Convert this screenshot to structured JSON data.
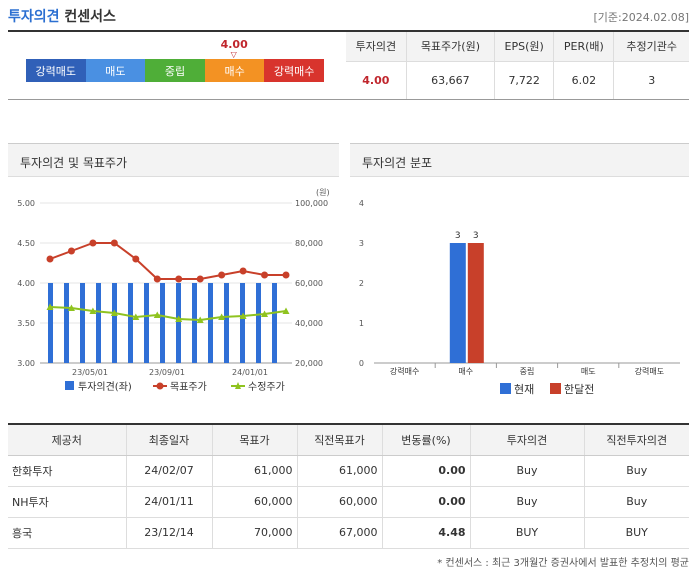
{
  "header": {
    "title_blue": "투자의견",
    "title_dark": "컨센서스",
    "base_date": "[기준:2024.02.08]"
  },
  "gauge": {
    "value": "4.00",
    "labels": [
      "강력매도",
      "매도",
      "중립",
      "매수",
      "강력매수"
    ],
    "colors": [
      "#3060b8",
      "#4a90e2",
      "#4fae38",
      "#f39223",
      "#d8342d"
    ],
    "selected_index": 3
  },
  "consensus_table": {
    "headers": [
      "투자의견",
      "목표주가(원)",
      "EPS(원)",
      "PER(배)",
      "추정기관수"
    ],
    "values": [
      "4.00",
      "63,667",
      "7,722",
      "6.02",
      "3"
    ]
  },
  "left_panel_title": "투자의견 및 목표주가",
  "right_panel_title": "투자의견 분포",
  "chart_data": [
    {
      "type": "bar+line",
      "left_axis": {
        "ticks": [
          "3.00",
          "3.50",
          "4.00",
          "4.50",
          "5.00"
        ],
        "ylim": [
          3,
          5
        ]
      },
      "right_axis": {
        "ticks": [
          "20,000",
          "40,000",
          "60,000",
          "80,000",
          "100,000"
        ],
        "ylim": [
          20000,
          100000
        ],
        "unit": "(원)"
      },
      "x_ticks": [
        "23/05/01",
        "23/09/01",
        "24/01/01"
      ],
      "series": [
        {
          "name": "투자의견(좌)",
          "kind": "bar",
          "color": "#2f6fd6",
          "values": [
            4,
            4,
            4,
            4,
            4,
            4,
            4,
            4,
            4,
            4,
            4,
            4,
            4,
            4,
            4
          ]
        },
        {
          "name": "목표주가",
          "kind": "line",
          "color": "#c8402a",
          "points": [
            [
              0,
              72000
            ],
            [
              1,
              76000
            ],
            [
              2,
              80000
            ],
            [
              3,
              80000
            ],
            [
              4,
              72000
            ],
            [
              5,
              62000
            ],
            [
              6,
              62000
            ],
            [
              7,
              62000
            ],
            [
              8,
              64000
            ],
            [
              9,
              66000
            ],
            [
              10,
              64000
            ],
            [
              11,
              64000
            ]
          ]
        },
        {
          "name": "수정주가",
          "kind": "line",
          "color": "#8fc31f",
          "points": [
            [
              0,
              48000
            ],
            [
              1,
              47500
            ],
            [
              2,
              46000
            ],
            [
              3,
              45000
            ],
            [
              4,
              43000
            ],
            [
              5,
              44000
            ],
            [
              6,
              42000
            ],
            [
              7,
              41500
            ],
            [
              8,
              43000
            ],
            [
              9,
              43500
            ],
            [
              10,
              44500
            ],
            [
              11,
              46000
            ]
          ]
        }
      ]
    },
    {
      "type": "bar",
      "categories": [
        "강력매수",
        "매수",
        "중립",
        "매도",
        "강력매도"
      ],
      "series": [
        {
          "name": "현재",
          "color": "#2f6fd6",
          "values": [
            0,
            3,
            0,
            0,
            0
          ]
        },
        {
          "name": "한달전",
          "color": "#c8402a",
          "values": [
            0,
            3,
            0,
            0,
            0
          ]
        }
      ],
      "y_ticks": [
        "0",
        "1",
        "2",
        "3",
        "4"
      ],
      "ylim": [
        0,
        4
      ]
    }
  ],
  "broker_table": {
    "headers": [
      "제공처",
      "최종일자",
      "목표가",
      "직전목표가",
      "변동률(%)",
      "투자의견",
      "직전투자의견"
    ],
    "rows": [
      [
        "한화투자",
        "24/02/07",
        "61,000",
        "61,000",
        "0.00",
        "Buy",
        "Buy"
      ],
      [
        "NH투자",
        "24/01/11",
        "60,000",
        "60,000",
        "0.00",
        "Buy",
        "Buy"
      ],
      [
        "흥국",
        "23/12/14",
        "70,000",
        "67,000",
        "4.48",
        "BUY",
        "BUY"
      ]
    ]
  },
  "footnote": "* 컨센서스 : 최근 3개월간 증권사에서 발표한 추정치의 평균"
}
